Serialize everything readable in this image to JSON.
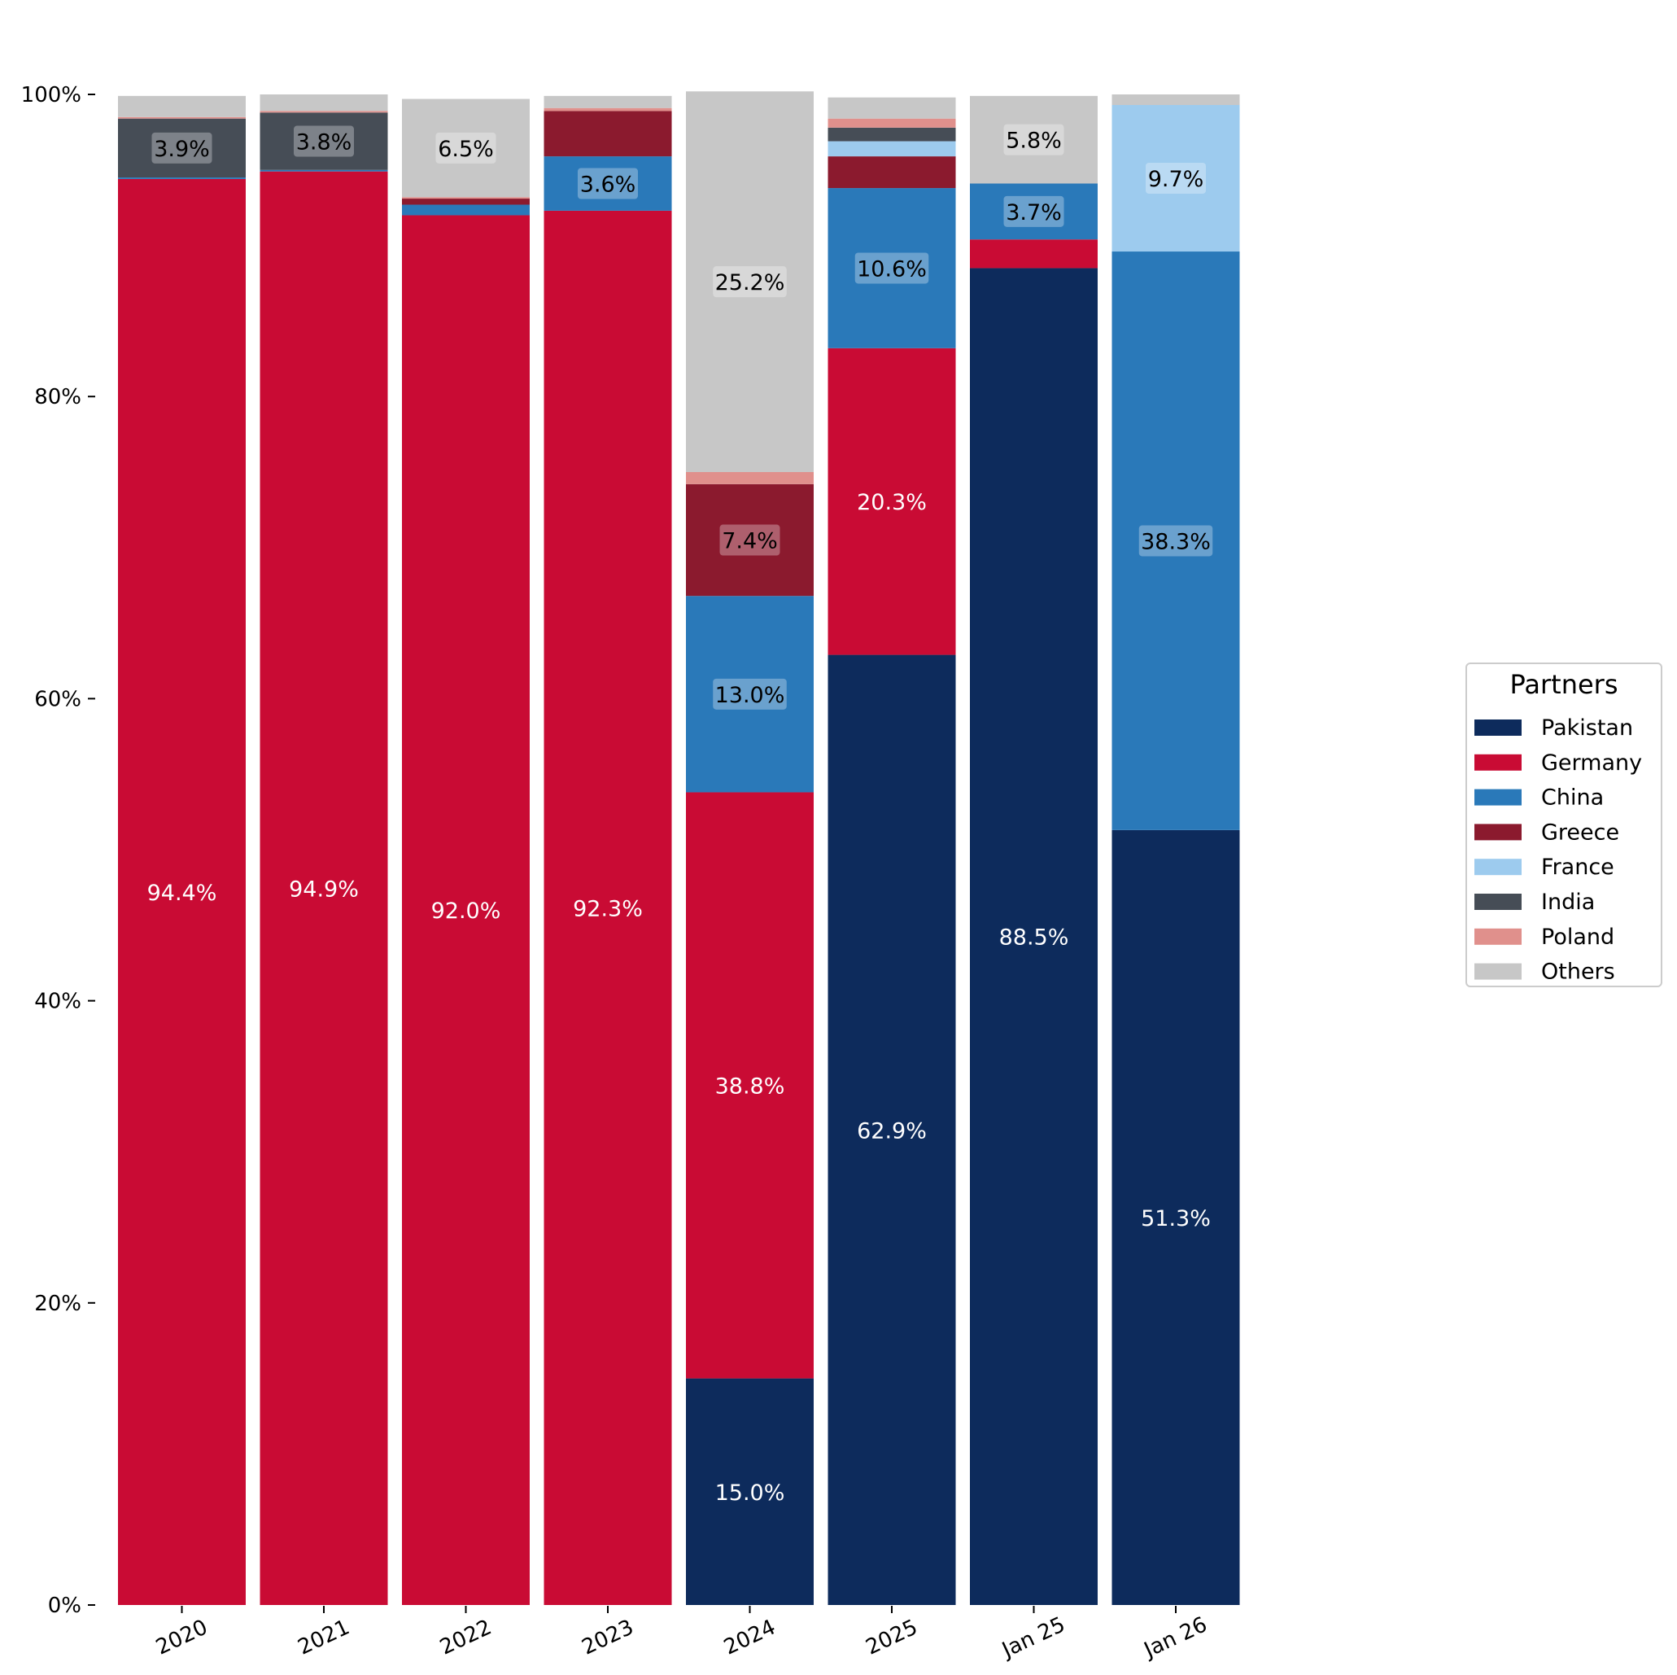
{
  "chart_data": {
    "type": "bar",
    "stacked": true,
    "categories": [
      "2020",
      "2021",
      "2022",
      "2023",
      "2024",
      "2025",
      "Jan 25",
      "Jan 26"
    ],
    "ylim": [
      0,
      100
    ],
    "y_ticks": [
      0,
      20,
      40,
      60,
      80,
      100
    ],
    "y_tick_labels": [
      "0%",
      "20%",
      "40%",
      "60%",
      "80%",
      "100%"
    ],
    "legend": {
      "title": "Partners",
      "position": "right"
    },
    "series": [
      {
        "name": "Pakistan",
        "color": "#0d2b5c",
        "values": [
          0,
          0,
          0,
          0,
          15.0,
          62.9,
          88.5,
          51.3
        ],
        "labels": [
          "",
          "",
          "",
          "",
          "15.0%",
          "62.9%",
          "88.5%",
          "51.3%"
        ]
      },
      {
        "name": "Germany",
        "color": "#c90b34",
        "values": [
          94.4,
          94.9,
          92.0,
          92.3,
          38.8,
          20.3,
          1.9,
          0
        ],
        "labels": [
          "94.4%",
          "94.9%",
          "92.0%",
          "92.3%",
          "38.8%",
          "20.3%",
          "",
          ""
        ]
      },
      {
        "name": "China",
        "color": "#2a79b9",
        "values": [
          0.1,
          0.1,
          0.7,
          3.6,
          13.0,
          10.6,
          3.7,
          38.3
        ],
        "labels": [
          "",
          "",
          "",
          "3.6%",
          "13.0%",
          "10.6%",
          "3.7%",
          "38.3%"
        ]
      },
      {
        "name": "Greece",
        "color": "#8b1a2e",
        "values": [
          0,
          0,
          0.4,
          3.0,
          7.4,
          2.1,
          0,
          0
        ],
        "labels": [
          "",
          "",
          "",
          "",
          "7.4%",
          "",
          "",
          ""
        ]
      },
      {
        "name": "France",
        "color": "#9dcbee",
        "values": [
          0,
          0,
          0,
          0,
          0,
          1.0,
          0,
          9.7
        ],
        "labels": [
          "",
          "",
          "",
          "",
          "",
          "",
          "",
          "9.7%"
        ]
      },
      {
        "name": "India",
        "color": "#464d56",
        "values": [
          3.9,
          3.8,
          0,
          0,
          0,
          0.9,
          0,
          0
        ],
        "labels": [
          "3.9%",
          "3.8%",
          "",
          "",
          "",
          "",
          "",
          ""
        ]
      },
      {
        "name": "Poland",
        "color": "#e0908c",
        "values": [
          0.1,
          0.1,
          0.1,
          0.2,
          0.8,
          0.6,
          0,
          0
        ],
        "labels": [
          "",
          "",
          "",
          "",
          "",
          "",
          "",
          ""
        ]
      },
      {
        "name": "Others",
        "color": "#c7c7c7",
        "values": [
          1.4,
          1.1,
          6.5,
          0.8,
          25.2,
          1.4,
          5.8,
          0.7
        ],
        "labels": [
          "",
          "",
          "6.5%",
          "",
          "25.2%",
          "",
          "5.8%",
          ""
        ]
      }
    ]
  }
}
